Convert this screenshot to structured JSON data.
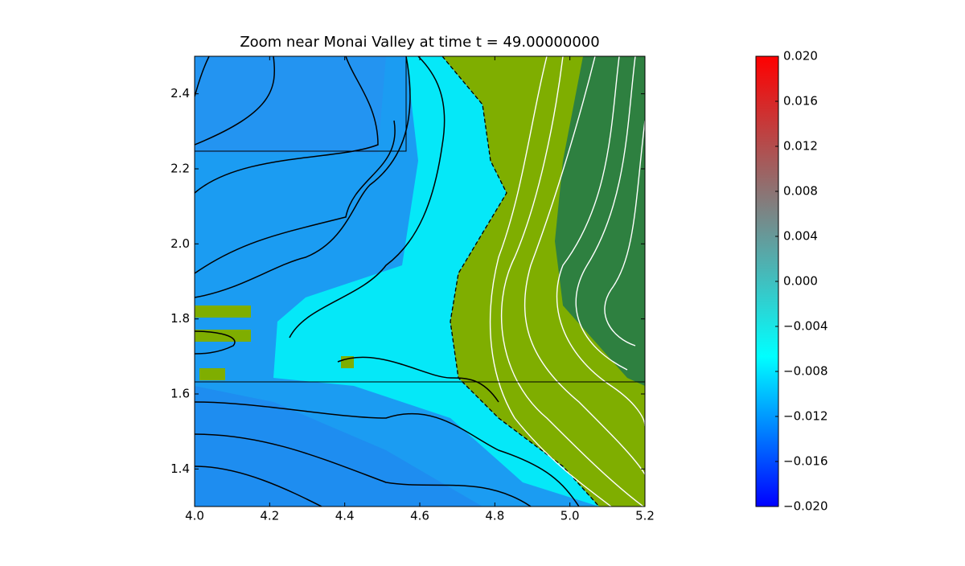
{
  "chart_data": {
    "type": "heatmap",
    "title": "Zoom near Monai Valley at time t =    49.00000000",
    "xlim": [
      4.0,
      5.2
    ],
    "xticks": [
      {
        "value": 4.0,
        "label": "4.0"
      },
      {
        "value": 4.2,
        "label": "4.2"
      },
      {
        "value": 4.4,
        "label": "4.4"
      },
      {
        "value": 4.6,
        "label": "4.6"
      },
      {
        "value": 4.8,
        "label": "4.8"
      },
      {
        "value": 5.0,
        "label": "5.0"
      },
      {
        "value": 5.2,
        "label": "5.2"
      }
    ],
    "ylim": [
      1.3,
      2.5
    ],
    "yticks": [
      {
        "value": 1.4,
        "label": "1.4"
      },
      {
        "value": 1.6,
        "label": "1.6"
      },
      {
        "value": 1.8,
        "label": "1.8"
      },
      {
        "value": 2.0,
        "label": "2.0"
      },
      {
        "value": 2.2,
        "label": "2.2"
      },
      {
        "value": 2.4,
        "label": "2.4"
      }
    ],
    "colorbar": {
      "lim": [
        -0.02,
        0.02
      ],
      "colors": [
        "#0000ff",
        "#00ffff",
        "#808080",
        "#ff0000"
      ],
      "ticks": [
        {
          "value": 0.02,
          "label": "0.020"
        },
        {
          "value": 0.016,
          "label": "0.016"
        },
        {
          "value": 0.012,
          "label": "0.012"
        },
        {
          "value": 0.008,
          "label": "0.008"
        },
        {
          "value": 0.004,
          "label": "0.004"
        },
        {
          "value": 0,
          "label": "0.000"
        },
        {
          "value": -0.004,
          "label": "−0.004"
        },
        {
          "value": -0.008,
          "label": "−0.008"
        },
        {
          "value": -0.012,
          "label": "−0.012"
        },
        {
          "value": -0.016,
          "label": "−0.016"
        },
        {
          "value": -0.02,
          "label": "−0.020"
        }
      ]
    }
  }
}
